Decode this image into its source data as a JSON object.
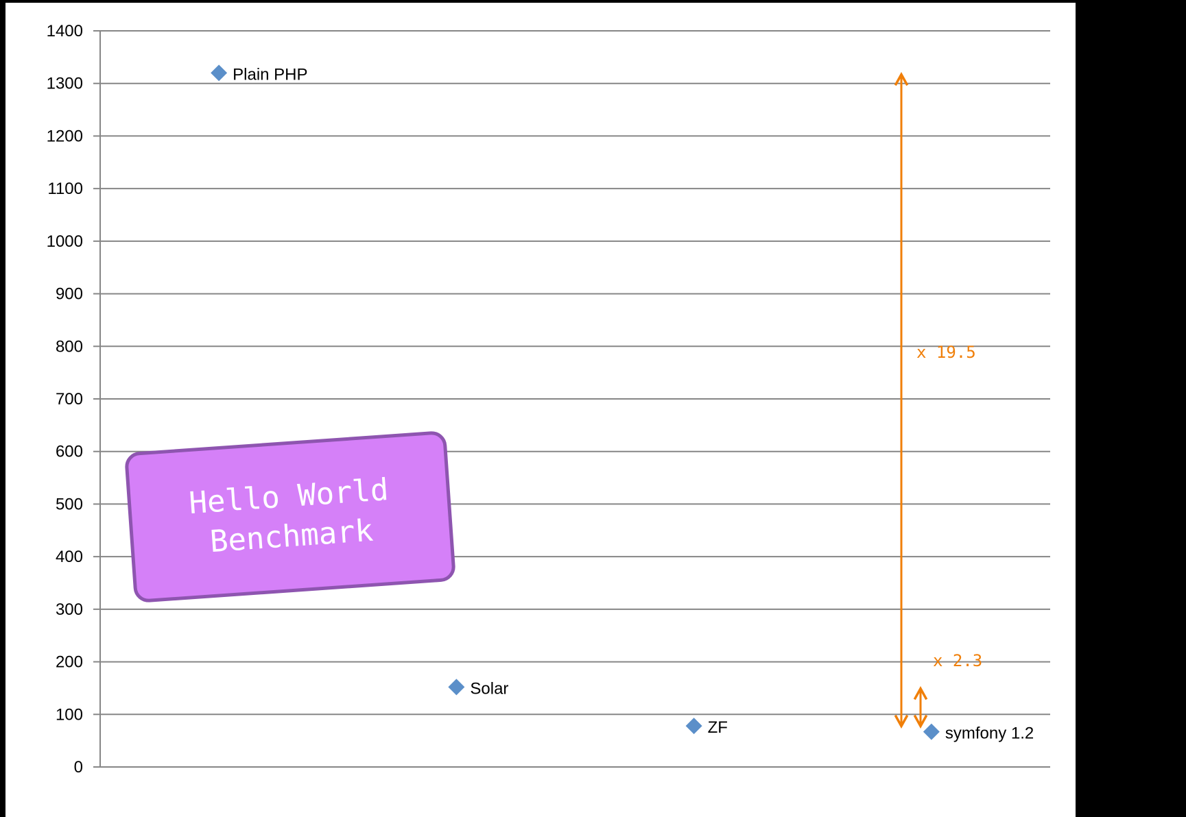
{
  "chart_data": {
    "type": "scatter",
    "title": "",
    "xlabel": "",
    "ylabel": "",
    "ylim": [
      0,
      1400
    ],
    "yticks": [
      0,
      100,
      200,
      300,
      400,
      500,
      600,
      700,
      800,
      900,
      1000,
      1100,
      1200,
      1300,
      1400
    ],
    "grid": true,
    "points": [
      {
        "label": "Plain PHP",
        "x": 1,
        "y": 1320
      },
      {
        "label": "Solar",
        "x": 2,
        "y": 152
      },
      {
        "label": "ZF",
        "x": 3,
        "y": 78
      },
      {
        "label": "symfony 1.2",
        "x": 4,
        "y": 67
      }
    ],
    "annotations": [
      {
        "text": "x 19.5",
        "from": 67,
        "to": 1320
      },
      {
        "text": "x 2.3",
        "from": 67,
        "to": 152
      }
    ],
    "colors": {
      "marker": "#5b8fc9",
      "arrow": "#f07f09",
      "grid": "#868686"
    }
  },
  "callout": {
    "lines": [
      "Hello World",
      "Benchmark"
    ],
    "colors": {
      "fill": "#d580f8",
      "border": "#8e55b0",
      "text": "#ffffff"
    }
  }
}
